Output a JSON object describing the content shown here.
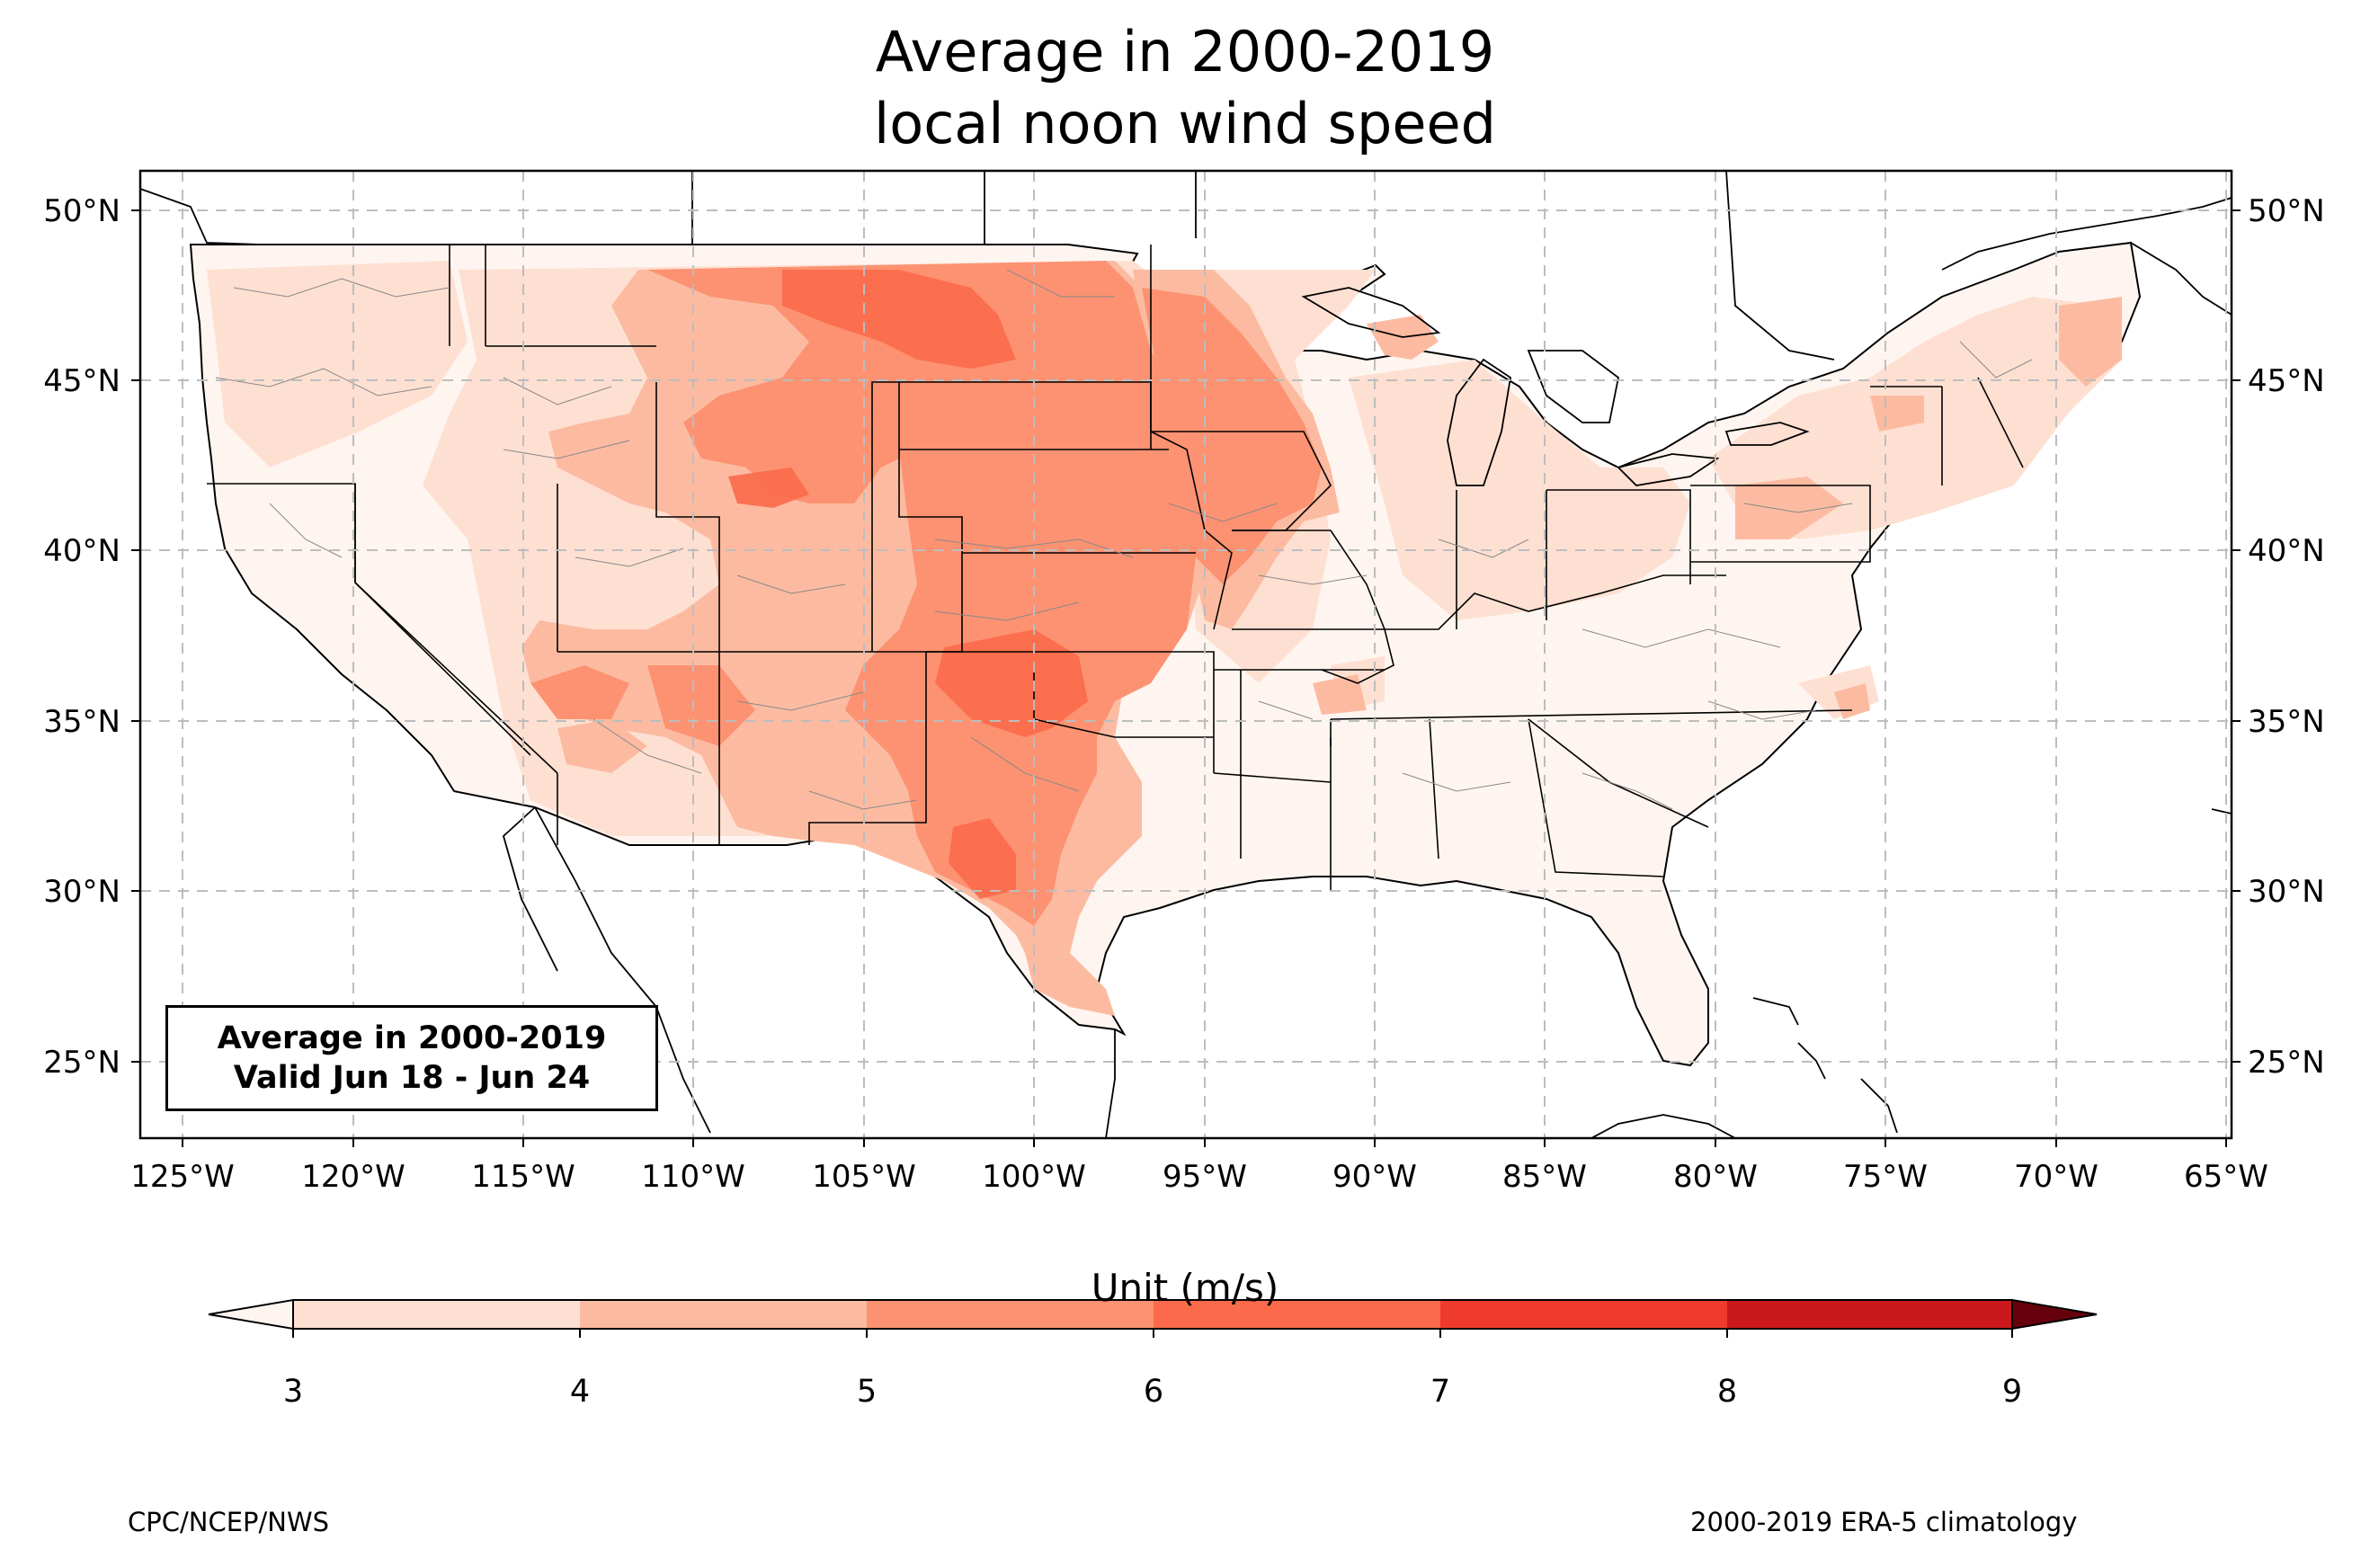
{
  "title_line1": "Average in 2000-2019",
  "title_line2": "local noon wind speed",
  "info_box": {
    "line1": "Average in 2000-2019",
    "line2": "Valid Jun 18 - Jun 24"
  },
  "map": {
    "projection": "plate-carree",
    "lon_range": [
      -126.3,
      -64.9
    ],
    "lat_range": [
      22.8,
      51.2
    ],
    "gridlines": "dashed",
    "lon_ticks": [
      "125°W",
      "120°W",
      "115°W",
      "110°W",
      "105°W",
      "100°W",
      "95°W",
      "90°W",
      "85°W",
      "80°W",
      "75°W",
      "70°W",
      "65°W"
    ],
    "lat_ticks_left": [
      "50°N",
      "45°N",
      "40°N",
      "35°N",
      "30°N",
      "25°N"
    ],
    "lat_ticks_right": [
      "50°N",
      "45°N",
      "40°N",
      "35°N",
      "30°N",
      "25°N"
    ]
  },
  "colorbar": {
    "label": "Unit (m/s)",
    "ticks": [
      "3",
      "4",
      "5",
      "6",
      "7",
      "8",
      "9"
    ],
    "colors": [
      "#fee0d2",
      "#fcbba1",
      "#fc9272",
      "#fb6a4a",
      "#ef3b2c",
      "#cb181d",
      "#99000d"
    ],
    "under_color": "#fff5f0",
    "over_color": "#67000d"
  },
  "footer_left": "CPC/NCEP/NWS",
  "footer_right": "2000-2019 ERA-5 climatology"
}
